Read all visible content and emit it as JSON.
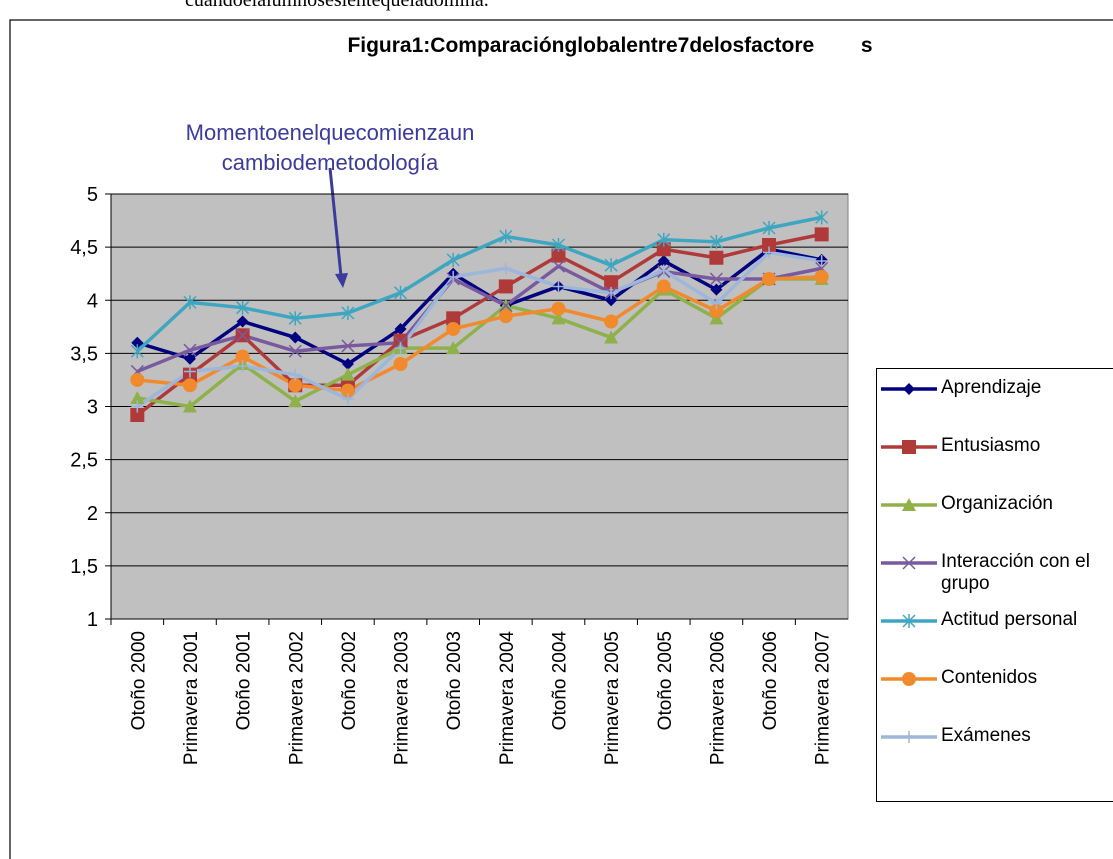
{
  "top_text": "cuandoelalumnosesientequeladomina.",
  "chart_data": {
    "type": "line",
    "title": "Figura1:Comparaciónglobalentre7delosfactore        s",
    "annotation": [
      "Momentoenelquecomienzaun",
      "cambiodemetodología"
    ],
    "categories": [
      "Otoño 2000",
      "Primavera 2001",
      "Otoño 2001",
      "Primavera 2002",
      "Otoño 2002",
      "Primavera 2003",
      "Otoño 2003",
      "Primavera 2004",
      "Otoño 2004",
      "Primavera 2005",
      "Otoño 2005",
      "Primavera 2006",
      "Otoño 2006",
      "Primavera 2007"
    ],
    "ylim": [
      1,
      5
    ],
    "yticks": [
      1,
      {
        "value": 1.5,
        "label": "1,5"
      },
      2,
      {
        "value": 2.5,
        "label": "2,5"
      },
      3,
      {
        "value": 3.5,
        "label": "3,5"
      },
      4,
      {
        "value": 4.5,
        "label": "4,5"
      },
      5
    ],
    "grid": true,
    "legend": "right",
    "series": [
      {
        "name": "Aprendizaje",
        "color": "#000080",
        "marker": "diamond",
        "values": [
          3.6,
          3.45,
          3.8,
          3.65,
          3.4,
          3.73,
          4.25,
          3.95,
          4.13,
          4.0,
          4.37,
          4.1,
          4.48,
          4.38
        ]
      },
      {
        "name": "Entusiasmo",
        "color": "#b03a3a",
        "marker": "square",
        "values": [
          2.92,
          3.3,
          3.67,
          3.2,
          3.2,
          3.62,
          3.83,
          4.13,
          4.42,
          4.17,
          4.48,
          4.4,
          4.52,
          4.62
        ]
      },
      {
        "name": "Organización",
        "color": "#8fb14a",
        "marker": "triangle",
        "values": [
          3.08,
          3.0,
          3.4,
          3.05,
          3.3,
          3.55,
          3.55,
          3.95,
          3.83,
          3.65,
          4.1,
          3.83,
          4.2,
          4.2
        ]
      },
      {
        "name": "Interacción con el grupo",
        "color": "#7a5a9e",
        "marker": "x",
        "values": [
          3.33,
          3.53,
          3.67,
          3.52,
          3.57,
          3.6,
          4.2,
          3.95,
          4.32,
          4.07,
          4.27,
          4.2,
          4.2,
          4.3
        ]
      },
      {
        "name": "Actitud personal",
        "color": "#3ea6c0",
        "marker": "star",
        "values": [
          3.52,
          3.98,
          3.93,
          3.83,
          3.88,
          4.07,
          4.38,
          4.6,
          4.52,
          4.33,
          4.57,
          4.55,
          4.68,
          4.78
        ]
      },
      {
        "name": "Contenidos",
        "color": "#f08a2c",
        "marker": "circle",
        "values": [
          3.25,
          3.2,
          3.47,
          3.2,
          3.15,
          3.4,
          3.73,
          3.85,
          3.92,
          3.8,
          4.13,
          3.9,
          4.2,
          4.22
        ]
      },
      {
        "name": "Exámenes",
        "color": "#9db6dc",
        "marker": "plus",
        "values": [
          3.0,
          3.33,
          3.38,
          3.3,
          3.07,
          3.55,
          4.22,
          4.3,
          4.13,
          4.07,
          4.28,
          3.97,
          4.45,
          4.37
        ]
      }
    ]
  }
}
